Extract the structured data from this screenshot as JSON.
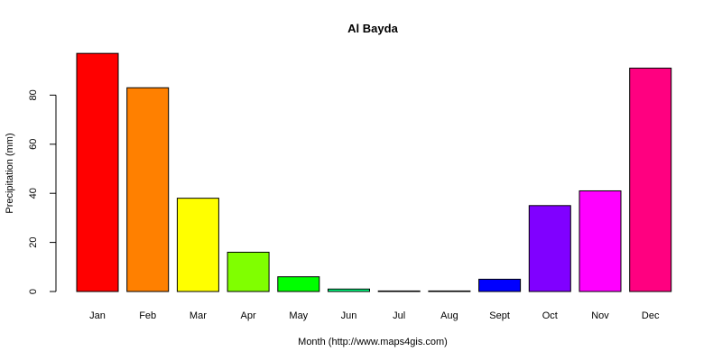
{
  "chart_data": {
    "type": "bar",
    "title": "Al Bayda",
    "xlabel": "Month (http://www.maps4gis.com)",
    "ylabel": "Precipitation (mm)",
    "categories": [
      "Jan",
      "Feb",
      "Mar",
      "Apr",
      "May",
      "Jun",
      "Jul",
      "Aug",
      "Sept",
      "Oct",
      "Nov",
      "Dec"
    ],
    "values": [
      97,
      83,
      38,
      16,
      6,
      1,
      0.2,
      0.2,
      5,
      35,
      41,
      91
    ],
    "colors": [
      "#FF0000",
      "#FF8000",
      "#FFFF00",
      "#80FF00",
      "#00FF00",
      "#00FF80",
      "#00FFFF",
      "#0080FF",
      "#0000FF",
      "#8000FF",
      "#FF00FF",
      "#FF0080"
    ],
    "yticks": [
      0,
      20,
      40,
      60,
      80
    ],
    "ylim": [
      0,
      97
    ],
    "grid": false
  }
}
